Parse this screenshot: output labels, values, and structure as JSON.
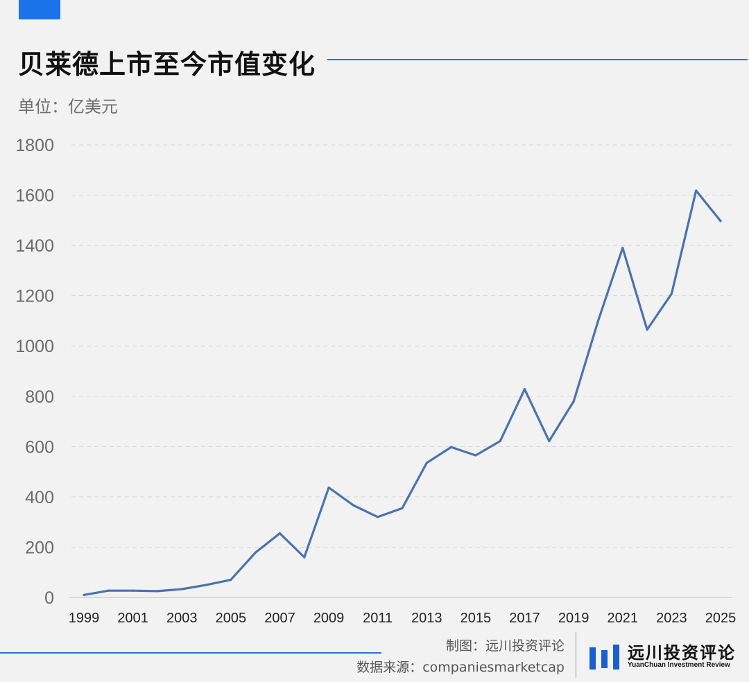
{
  "header": {
    "title": "贝莱德上市至今市值变化",
    "unit": "单位：亿美元"
  },
  "footer": {
    "credit": "制图：远川投资评论",
    "source": "数据来源：companiesmarketcap"
  },
  "logo": {
    "name_cn": "远川投资评论",
    "name_en": "YuanChuan Investment Review"
  },
  "colors": {
    "accent": "#1a73e8",
    "line": "#4a72b0",
    "grid": "#d4d4d4",
    "background": "#f2f2f2"
  },
  "chart_data": {
    "type": "line",
    "title": "贝莱德上市至今市值变化",
    "ylabel": "单位：亿美元",
    "ylim": [
      0,
      1800
    ],
    "yticks": [
      0,
      200,
      400,
      600,
      800,
      1000,
      1200,
      1400,
      1600,
      1800
    ],
    "xticks": [
      1999,
      2001,
      2003,
      2005,
      2007,
      2009,
      2011,
      2013,
      2015,
      2017,
      2019,
      2021,
      2023,
      2025
    ],
    "grid": true,
    "x": [
      1999,
      2000,
      2001,
      2002,
      2003,
      2004,
      2005,
      2006,
      2007,
      2008,
      2009,
      2010,
      2011,
      2012,
      2013,
      2014,
      2015,
      2016,
      2017,
      2018,
      2019,
      2020,
      2021,
      2022,
      2023,
      2024,
      2025
    ],
    "series": [
      {
        "values": [
          10,
          27,
          27,
          25,
          33,
          50,
          70,
          178,
          255,
          160,
          437,
          367,
          320,
          355,
          535,
          598,
          565,
          622,
          828,
          622,
          780,
          1100,
          1390,
          1065,
          1208,
          1618,
          1497
        ]
      }
    ]
  }
}
